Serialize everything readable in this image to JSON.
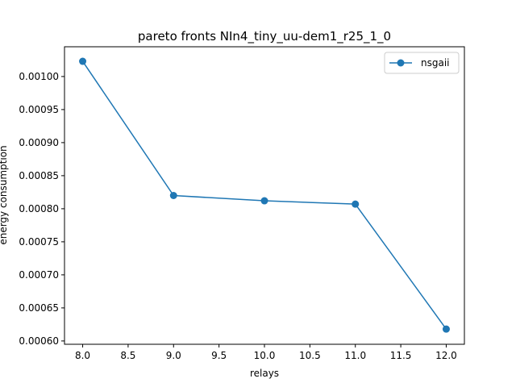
{
  "chart_data": {
    "type": "line",
    "title": "pareto fronts NIn4_tiny_uu-dem1_r25_1_0",
    "xlabel": "relays",
    "ylabel": "energy consumption",
    "xlim": [
      7.8,
      12.2
    ],
    "ylim": [
      0.000595,
      0.001045
    ],
    "xticks": [
      "8.0",
      "8.5",
      "9.0",
      "9.5",
      "10.0",
      "10.5",
      "11.0",
      "11.5",
      "12.0"
    ],
    "xtick_values": [
      8.0,
      8.5,
      9.0,
      9.5,
      10.0,
      10.5,
      11.0,
      11.5,
      12.0
    ],
    "yticks": [
      "0.00060",
      "0.00065",
      "0.00070",
      "0.00075",
      "0.00080",
      "0.00085",
      "0.00090",
      "0.00095",
      "0.00100"
    ],
    "ytick_values": [
      0.0006,
      0.00065,
      0.0007,
      0.00075,
      0.0008,
      0.00085,
      0.0009,
      0.00095,
      0.001
    ],
    "series": [
      {
        "name": "nsgaii",
        "color": "#1f77b4",
        "marker": "circle",
        "x": [
          8,
          9,
          10,
          11,
          12
        ],
        "y": [
          0.001023,
          0.00082,
          0.000812,
          0.000807,
          0.000618
        ]
      }
    ],
    "legend_position": "top-right",
    "grid": false
  }
}
